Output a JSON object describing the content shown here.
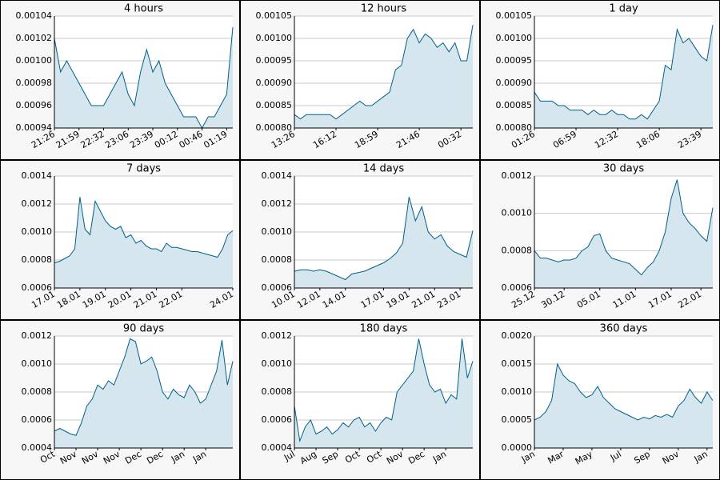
{
  "chart_data": [
    {
      "type": "area",
      "title": "4 hours",
      "color": "#006088",
      "area_color": "#d6e6ee",
      "grid": true,
      "ylim": [
        0.00094,
        0.00104
      ],
      "yticks": [
        0.00094,
        0.00096,
        0.00098,
        {
          "value": 0.001,
          "label": "0.00100"
        },
        0.00102,
        0.00104
      ],
      "categories": [
        "21:26",
        null,
        null,
        null,
        "21:59",
        null,
        null,
        null,
        "22:32",
        null,
        null,
        null,
        "23:06",
        null,
        null,
        null,
        "23:39",
        null,
        null,
        null,
        "00:12",
        null,
        null,
        null,
        "00:46",
        null,
        null,
        null,
        "01:19",
        null
      ],
      "values": [
        0.00102,
        0.00099,
        0.001,
        0.00099,
        0.00098,
        0.00097,
        0.00096,
        0.00096,
        0.00096,
        0.00097,
        0.00098,
        0.00099,
        0.00097,
        0.00096,
        0.00099,
        0.00101,
        0.00099,
        0.001,
        0.00098,
        0.00097,
        0.00096,
        0.00095,
        0.00095,
        0.00095,
        0.00094,
        0.00095,
        0.00095,
        0.00096,
        0.00097,
        0.00103
      ]
    },
    {
      "type": "area",
      "title": "12 hours",
      "color": "#006088",
      "area_color": "#d6e6ee",
      "grid": true,
      "ylim": [
        0.0008,
        0.00105
      ],
      "yticks": [
        {
          "value": 0.0008,
          "label": "0.00080"
        },
        0.00085,
        {
          "value": 0.0009,
          "label": "0.00090"
        },
        0.00095,
        {
          "value": 0.001,
          "label": "0.00100"
        },
        0.00105
      ],
      "categories": [
        "13:26",
        null,
        null,
        null,
        null,
        null,
        null,
        "16:12",
        null,
        null,
        null,
        null,
        null,
        null,
        "18:59",
        null,
        null,
        null,
        null,
        null,
        null,
        "21:46",
        null,
        null,
        null,
        null,
        null,
        null,
        "00:32",
        null,
        null
      ],
      "values": [
        0.00083,
        0.00082,
        0.00083,
        0.00083,
        0.00083,
        0.00083,
        0.00083,
        0.00082,
        0.00083,
        0.00084,
        0.00085,
        0.00086,
        0.00085,
        0.00085,
        0.00086,
        0.00087,
        0.00088,
        0.00093,
        0.00094,
        0.001,
        0.00102,
        0.00099,
        0.00101,
        0.001,
        0.00098,
        0.00099,
        0.00097,
        0.00099,
        0.00095,
        0.00095,
        0.00103
      ]
    },
    {
      "type": "area",
      "title": "1 day",
      "color": "#006088",
      "area_color": "#d6e6ee",
      "grid": true,
      "ylim": [
        0.0008,
        0.00105
      ],
      "yticks": [
        {
          "value": 0.0008,
          "label": "0.00080"
        },
        0.00085,
        {
          "value": 0.0009,
          "label": "0.00090"
        },
        0.00095,
        {
          "value": 0.001,
          "label": "0.00100"
        },
        0.00105
      ],
      "categories": [
        "01:26",
        null,
        null,
        null,
        null,
        null,
        null,
        "06:59",
        null,
        null,
        null,
        null,
        null,
        null,
        "12:32",
        null,
        null,
        null,
        null,
        null,
        null,
        "18:06",
        null,
        null,
        null,
        null,
        null,
        null,
        "23:39",
        null,
        null
      ],
      "values": [
        0.00088,
        0.00086,
        0.00086,
        0.00086,
        0.00085,
        0.00085,
        0.00084,
        0.00084,
        0.00084,
        0.00083,
        0.00084,
        0.00083,
        0.00083,
        0.00084,
        0.00083,
        0.00083,
        0.00082,
        0.00082,
        0.00083,
        0.00082,
        0.00084,
        0.00086,
        0.00094,
        0.00093,
        0.00102,
        0.00099,
        0.001,
        0.00098,
        0.00096,
        0.00095,
        0.00103
      ]
    },
    {
      "type": "area",
      "title": "7 days",
      "color": "#006088",
      "area_color": "#d6e6ee",
      "grid": true,
      "ylim": [
        0.0006,
        0.0014
      ],
      "yticks": [
        0.0006,
        0.0008,
        {
          "value": 0.001,
          "label": "0.0010"
        },
        0.0012,
        0.0014
      ],
      "categories": [
        "17.01",
        null,
        null,
        null,
        null,
        "18.01",
        null,
        null,
        null,
        null,
        "19.01",
        null,
        null,
        null,
        null,
        "20.01",
        null,
        null,
        null,
        null,
        "21.01",
        null,
        null,
        null,
        null,
        "22.01",
        null,
        null,
        null,
        null,
        null,
        null,
        null,
        null,
        null,
        "24.01"
      ],
      "values": [
        0.00078,
        0.00079,
        0.00081,
        0.00083,
        0.00088,
        0.00125,
        0.00102,
        0.00098,
        0.00122,
        0.00115,
        0.00108,
        0.00104,
        0.00102,
        0.00104,
        0.00096,
        0.00098,
        0.00092,
        0.00094,
        0.0009,
        0.00088,
        0.00088,
        0.00086,
        0.00092,
        0.00089,
        0.00089,
        0.00088,
        0.00087,
        0.00086,
        0.00086,
        0.00085,
        0.00084,
        0.00083,
        0.00082,
        0.00088,
        0.00098,
        0.00101
      ]
    },
    {
      "type": "area",
      "title": "14 days",
      "color": "#006088",
      "area_color": "#d6e6ee",
      "grid": true,
      "ylim": [
        0.0006,
        0.0014
      ],
      "yticks": [
        0.0006,
        0.0008,
        {
          "value": 0.001,
          "label": "0.0010"
        },
        0.0012,
        0.0014
      ],
      "categories": [
        "10.01",
        null,
        null,
        null,
        "12.01",
        null,
        null,
        null,
        "14.01",
        null,
        null,
        null,
        null,
        null,
        "17.01",
        null,
        null,
        null,
        "19.01",
        null,
        null,
        null,
        "21.01",
        null,
        null,
        null,
        "23.01",
        null,
        null
      ],
      "values": [
        0.00072,
        0.00073,
        0.00073,
        0.00072,
        0.00073,
        0.00072,
        0.0007,
        0.00068,
        0.00066,
        0.0007,
        0.00071,
        0.00072,
        0.00074,
        0.00076,
        0.00078,
        0.00081,
        0.00085,
        0.00092,
        0.00125,
        0.00108,
        0.00118,
        0.001,
        0.00095,
        0.00098,
        0.0009,
        0.00086,
        0.00084,
        0.00082,
        0.00101
      ]
    },
    {
      "type": "area",
      "title": "30 days",
      "color": "#006088",
      "area_color": "#d6e6ee",
      "grid": true,
      "ylim": [
        0.0006,
        0.0012
      ],
      "yticks": [
        0.0006,
        0.0008,
        {
          "value": 0.001,
          "label": "0.0010"
        },
        0.0012
      ],
      "categories": [
        "25.12",
        null,
        null,
        null,
        null,
        "30.12",
        null,
        null,
        null,
        null,
        null,
        "05.01",
        null,
        null,
        null,
        null,
        null,
        "11.01",
        null,
        null,
        null,
        null,
        null,
        "17.01",
        null,
        null,
        null,
        null,
        "22.01",
        null,
        null
      ],
      "values": [
        0.0008,
        0.00076,
        0.00076,
        0.00075,
        0.00074,
        0.00075,
        0.00075,
        0.00076,
        0.0008,
        0.00082,
        0.00088,
        0.00089,
        0.0008,
        0.00076,
        0.00075,
        0.00074,
        0.00073,
        0.0007,
        0.00067,
        0.00071,
        0.00074,
        0.0008,
        0.0009,
        0.00108,
        0.00118,
        0.001,
        0.00095,
        0.00092,
        0.00088,
        0.00085,
        0.00103
      ]
    },
    {
      "type": "area",
      "title": "90 days",
      "color": "#006088",
      "area_color": "#d6e6ee",
      "grid": true,
      "ylim": [
        0.0004,
        0.0012
      ],
      "yticks": [
        0.0004,
        0.0006,
        0.0008,
        {
          "value": 0.001,
          "label": "0.0010"
        },
        0.0012
      ],
      "categories": [
        "Oct",
        null,
        null,
        null,
        "Nov",
        null,
        null,
        null,
        "Nov",
        null,
        null,
        null,
        "Nov",
        null,
        null,
        null,
        "Dec",
        null,
        null,
        null,
        "Dec",
        null,
        null,
        null,
        "Jan",
        null,
        null,
        null,
        "Jan",
        null,
        null,
        null,
        null,
        null
      ],
      "values": [
        0.00052,
        0.00054,
        0.00052,
        0.0005,
        0.00049,
        0.00058,
        0.0007,
        0.00075,
        0.00085,
        0.00082,
        0.00088,
        0.00085,
        0.00095,
        0.00105,
        0.00118,
        0.00116,
        0.001,
        0.00102,
        0.00105,
        0.00095,
        0.0008,
        0.00075,
        0.00082,
        0.00078,
        0.00076,
        0.00085,
        0.0008,
        0.00072,
        0.00075,
        0.00085,
        0.00095,
        0.00117,
        0.00085,
        0.00102
      ]
    },
    {
      "type": "area",
      "title": "180 days",
      "color": "#006088",
      "area_color": "#d6e6ee",
      "grid": true,
      "ylim": [
        0.0004,
        0.0012
      ],
      "yticks": [
        0.0004,
        0.0006,
        0.0008,
        {
          "value": 0.001,
          "label": "0.0010"
        },
        0.0012
      ],
      "categories": [
        "Jul",
        null,
        null,
        null,
        "Aug",
        null,
        null,
        null,
        "Sep",
        null,
        null,
        null,
        "Oct",
        null,
        null,
        null,
        "Oct",
        null,
        null,
        null,
        "Nov",
        null,
        null,
        null,
        "Dec",
        null,
        null,
        null,
        "Jan",
        null,
        null,
        null,
        null,
        null
      ],
      "values": [
        0.0007,
        0.00045,
        0.00055,
        0.0006,
        0.0005,
        0.00052,
        0.00055,
        0.0005,
        0.00053,
        0.00058,
        0.00055,
        0.0006,
        0.00062,
        0.00055,
        0.00058,
        0.00052,
        0.00058,
        0.00062,
        0.0006,
        0.0008,
        0.00085,
        0.0009,
        0.00095,
        0.00118,
        0.001,
        0.00085,
        0.0008,
        0.00082,
        0.00072,
        0.00078,
        0.00075,
        0.00118,
        0.0009,
        0.00102
      ]
    },
    {
      "type": "area",
      "title": "360 days",
      "color": "#006088",
      "area_color": "#d6e6ee",
      "grid": true,
      "ylim": [
        0,
        0.002
      ],
      "yticks": [
        {
          "value": 0,
          "label": "0.0000"
        },
        0.0005,
        {
          "value": 0.001,
          "label": "0.0010"
        },
        0.0015,
        {
          "value": 0.002,
          "label": "0.0020"
        }
      ],
      "categories": [
        "Jan",
        null,
        null,
        null,
        null,
        "Mar",
        null,
        null,
        null,
        null,
        "May",
        null,
        null,
        null,
        null,
        "Jul",
        null,
        null,
        null,
        null,
        "Sep",
        null,
        null,
        null,
        null,
        "Nov",
        null,
        null,
        null,
        null,
        "Jan",
        null
      ],
      "values": [
        0.0005,
        0.00055,
        0.00065,
        0.00085,
        0.0015,
        0.0013,
        0.0012,
        0.00115,
        0.001,
        0.0009,
        0.00095,
        0.0011,
        0.0009,
        0.0008,
        0.0007,
        0.00065,
        0.0006,
        0.00055,
        0.0005,
        0.00055,
        0.00052,
        0.00058,
        0.00055,
        0.0006,
        0.00055,
        0.00075,
        0.00085,
        0.00105,
        0.0009,
        0.0008,
        0.001,
        0.00085
      ]
    }
  ]
}
